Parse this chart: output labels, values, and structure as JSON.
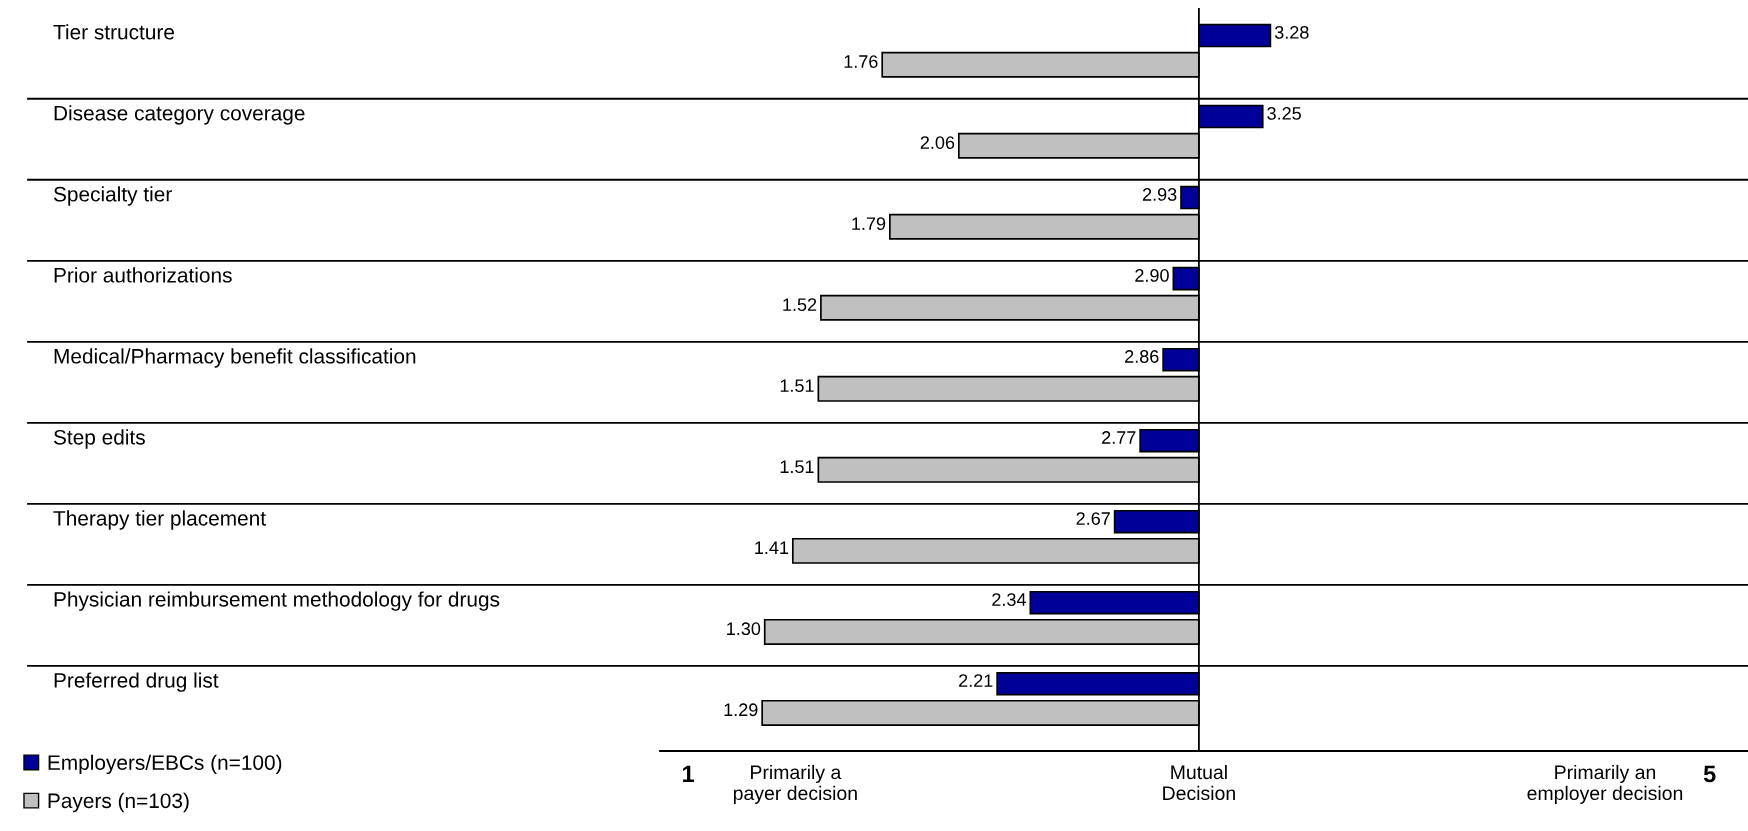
{
  "chart_data": {
    "type": "bar",
    "orientation": "horizontal",
    "categories": [
      "Tier structure",
      "Disease category coverage",
      "Specialty tier",
      "Prior authorizations",
      "Medical/Pharmacy benefit classification",
      "Step edits",
      "Therapy tier placement",
      "Physician reimbursement methodology for drugs",
      "Preferred drug list"
    ],
    "series": [
      {
        "name": "Employers/EBCs (n=100)",
        "color": "#000099",
        "base": [
          3,
          3,
          3,
          3,
          3,
          3,
          3,
          3,
          3
        ],
        "values": [
          0.28,
          0.25,
          -0.07,
          -0.1,
          -0.14,
          -0.23,
          -0.33,
          -0.66,
          -0.79
        ],
        "value_labels": [
          "3.28",
          "3.25",
          "2.93",
          "2.90",
          "2.86",
          "2.77",
          "2.67",
          "2.34",
          "2.21"
        ]
      },
      {
        "name": "Payers (n=103)",
        "color": "#c0c0c0",
        "base": [
          3,
          3,
          3,
          3,
          3,
          3,
          3,
          3,
          3
        ],
        "values": [
          -1.24,
          -0.94,
          -1.21,
          -1.48,
          -1.49,
          -1.49,
          -1.59,
          -1.7,
          -1.71
        ],
        "value_labels": [
          "1.76",
          "2.06",
          "1.79",
          "1.52",
          "1.51",
          "1.51",
          "1.41",
          "1.30",
          "1.29"
        ]
      }
    ],
    "xlim": [
      0.89,
      5.15
    ],
    "xticks": [
      {
        "value": 1,
        "label": "1"
      },
      {
        "value": 1.42,
        "label": "Primarily a\npayer decision"
      },
      {
        "value": 3,
        "label": "Mutual\nDecision"
      },
      {
        "value": 4.59,
        "label": "Primarily an\nemployer decision"
      },
      {
        "value": 5,
        "label": "5"
      }
    ],
    "ref_lines": [
      {
        "axis": "x",
        "value": 3,
        "color": "#000000"
      }
    ],
    "legend": "bottom left",
    "grid": false
  }
}
